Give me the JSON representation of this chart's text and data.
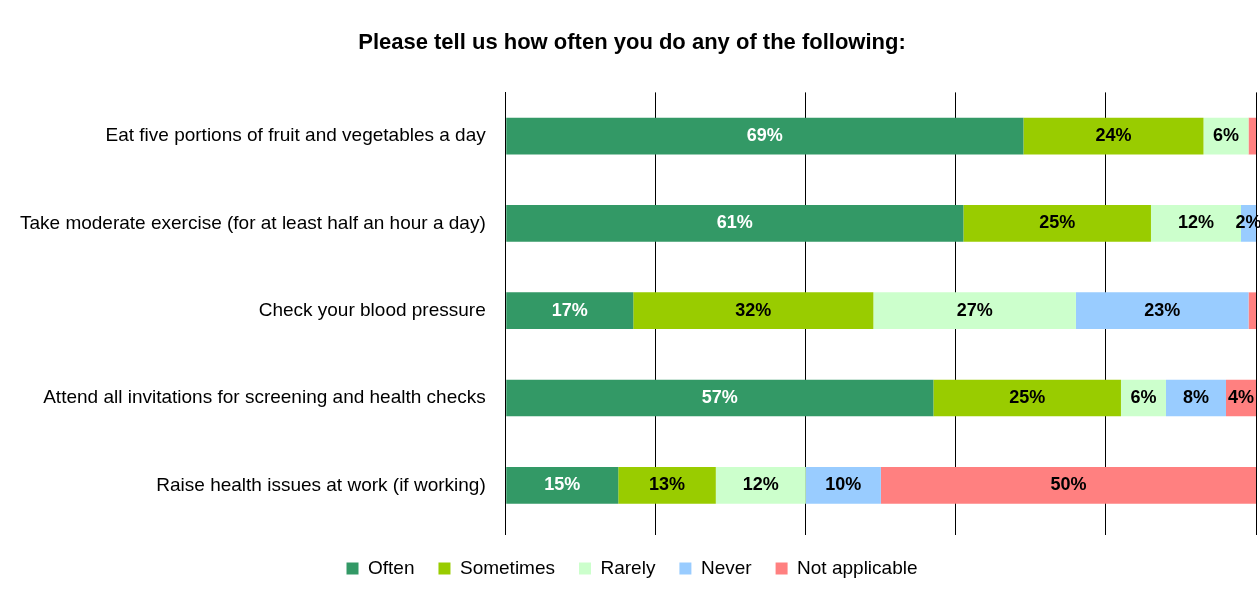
{
  "chart_data": {
    "type": "bar",
    "orientation": "horizontal",
    "stacked": true,
    "title": "Please tell us how often you do any of the following:",
    "categories": [
      "Eat five portions of fruit and vegetables a day",
      "Take moderate exercise (for at least half an hour a day)",
      "Check your blood pressure",
      "Attend all invitations for screening and health checks",
      "Raise health issues at work (if working)"
    ],
    "series": [
      {
        "name": "Often",
        "color": "#339966",
        "values": [
          69,
          61,
          17,
          57,
          15
        ],
        "value_labels": [
          "69%",
          "61%",
          "17%",
          "57%",
          "15%"
        ]
      },
      {
        "name": "Sometimes",
        "color": "#99cc00",
        "values": [
          24,
          25,
          32,
          25,
          13
        ],
        "value_labels": [
          "24%",
          "25%",
          "32%",
          "25%",
          "13%"
        ]
      },
      {
        "name": "Rarely",
        "color": "#ccffcc",
        "values": [
          6,
          12,
          27,
          6,
          12
        ],
        "value_labels": [
          "6%",
          "12%",
          "27%",
          "6%",
          "12%"
        ]
      },
      {
        "name": "Never",
        "color": "#99ccff",
        "values": [
          0,
          2,
          23,
          8,
          10
        ],
        "value_labels": [
          null,
          "2%",
          "23%",
          "8%",
          "10%"
        ]
      },
      {
        "name": "Not applicable",
        "color": "#ff8080",
        "values": [
          1,
          0,
          1,
          4,
          50
        ],
        "value_labels": [
          null,
          null,
          null,
          "4%",
          "50%"
        ]
      }
    ],
    "xlim": [
      0,
      100
    ],
    "xticks": [
      {
        "value": 0,
        "label": null
      },
      {
        "value": 20,
        "label": null
      },
      {
        "value": 40,
        "label": null
      },
      {
        "value": 60,
        "label": null
      },
      {
        "value": 80,
        "label": null
      },
      {
        "value": 100,
        "label": null
      }
    ],
    "grid": "x",
    "tick_labels": "y",
    "legend": "bottom"
  }
}
